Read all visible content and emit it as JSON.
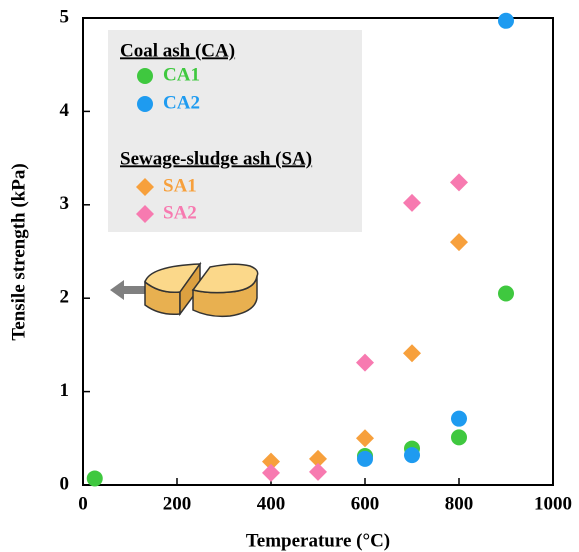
{
  "chart_data": {
    "type": "scatter",
    "x_label": "Temperature (°C)",
    "y_label": "Tensile strength (kPa)",
    "xlim": [
      0,
      1000
    ],
    "xticks": [
      0,
      200,
      400,
      600,
      800,
      1000
    ],
    "ylim": [
      0,
      5
    ],
    "yticks": [
      0,
      1,
      2,
      3,
      4,
      5
    ],
    "legend_titles": [
      "Coal ash (CA)",
      "Sewage-sludge ash (SA)"
    ],
    "legend": "upper left",
    "series": [
      {
        "name": "CA1",
        "color": "#3fc83f",
        "marker": "circle",
        "x": [
          25,
          600,
          700,
          800,
          900
        ],
        "values": [
          0.07,
          0.31,
          0.39,
          0.51,
          2.05
        ]
      },
      {
        "name": "CA2",
        "color": "#1e9bf0",
        "marker": "circle",
        "x": [
          600,
          700,
          800,
          900
        ],
        "values": [
          0.28,
          0.32,
          0.71,
          4.97
        ]
      },
      {
        "name": "SA1",
        "color": "#f7a03c",
        "marker": "diamond",
        "x": [
          400,
          500,
          600,
          700,
          800
        ],
        "values": [
          0.25,
          0.28,
          0.5,
          1.41,
          2.6
        ]
      },
      {
        "name": "SA2",
        "color": "#f77ab0",
        "marker": "diamond",
        "x": [
          400,
          500,
          600,
          700,
          800
        ],
        "values": [
          0.13,
          0.14,
          1.31,
          3.02,
          3.24
        ]
      }
    ]
  }
}
